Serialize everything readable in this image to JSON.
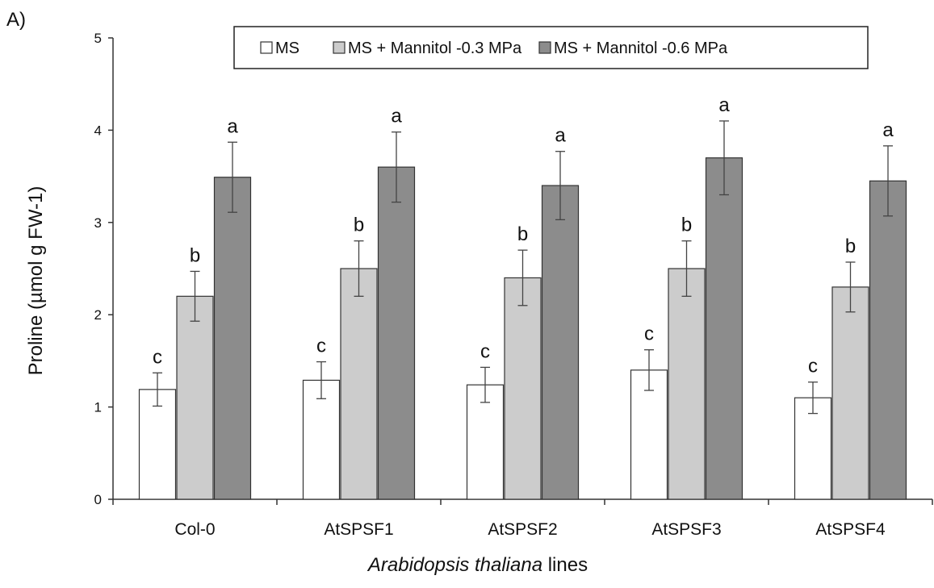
{
  "panel_label": "A)",
  "chart_data": {
    "type": "bar",
    "title": "",
    "xlabel": {
      "italic": "Arabidopsis thaliana",
      "rest": " lines"
    },
    "ylabel": "Proline  (µmol g FW-1)",
    "ylim": [
      0,
      5
    ],
    "yticks": [
      "0",
      "1",
      "2",
      "3",
      "4",
      "5"
    ],
    "grid": false,
    "legend_position": "top-right",
    "categories": [
      "Col-0",
      "AtSPSF1",
      "AtSPSF2",
      "AtSPSF3",
      "AtSPSF4"
    ],
    "series": [
      {
        "name": "MS",
        "color": "#ffffff",
        "values": [
          1.19,
          1.29,
          1.24,
          1.4,
          1.1
        ],
        "errors": [
          0.18,
          0.2,
          0.19,
          0.22,
          0.17
        ],
        "letters": [
          "c",
          "c",
          "c",
          "c",
          "c"
        ]
      },
      {
        "name": "MS + Mannitol  -0.3 MPa",
        "color": "#cccccc",
        "values": [
          2.2,
          2.5,
          2.4,
          2.5,
          2.3
        ],
        "errors": [
          0.27,
          0.3,
          0.3,
          0.3,
          0.27
        ],
        "letters": [
          "b",
          "b",
          "b",
          "b",
          "b"
        ]
      },
      {
        "name": "MS + Mannitol -0.6 MPa",
        "color": "#8c8c8c",
        "values": [
          3.49,
          3.6,
          3.4,
          3.7,
          3.45
        ],
        "errors": [
          0.38,
          0.38,
          0.37,
          0.4,
          0.38
        ],
        "letters": [
          "a",
          "a",
          "a",
          "a",
          "a"
        ]
      }
    ]
  }
}
